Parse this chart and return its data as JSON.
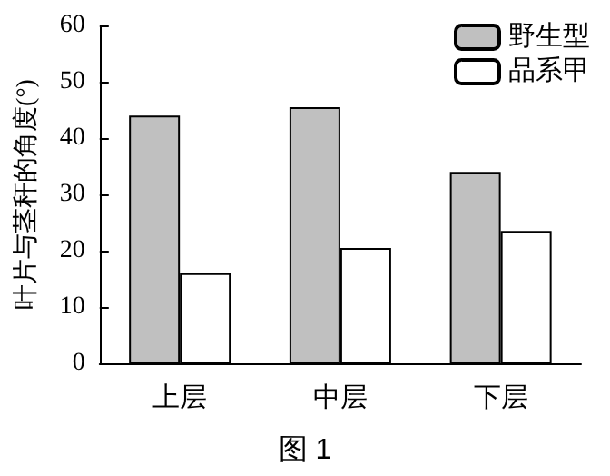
{
  "chart_data": {
    "type": "bar",
    "ylabel": "叶片与茎秆的角度(°)",
    "categories": [
      "上层",
      "中层",
      "下层"
    ],
    "series": [
      {
        "name": "野生型",
        "color": "#c0c0c0",
        "values": [
          44,
          45.5,
          34
        ]
      },
      {
        "name": "品系甲",
        "color": "#ffffff",
        "values": [
          16,
          20.5,
          23.5
        ]
      }
    ],
    "ylim": [
      0,
      60
    ],
    "yticks": [
      0,
      10,
      20,
      30,
      40,
      50,
      60
    ],
    "grid": false,
    "legend": "top right",
    "annotations": [
      "图 1"
    ]
  }
}
